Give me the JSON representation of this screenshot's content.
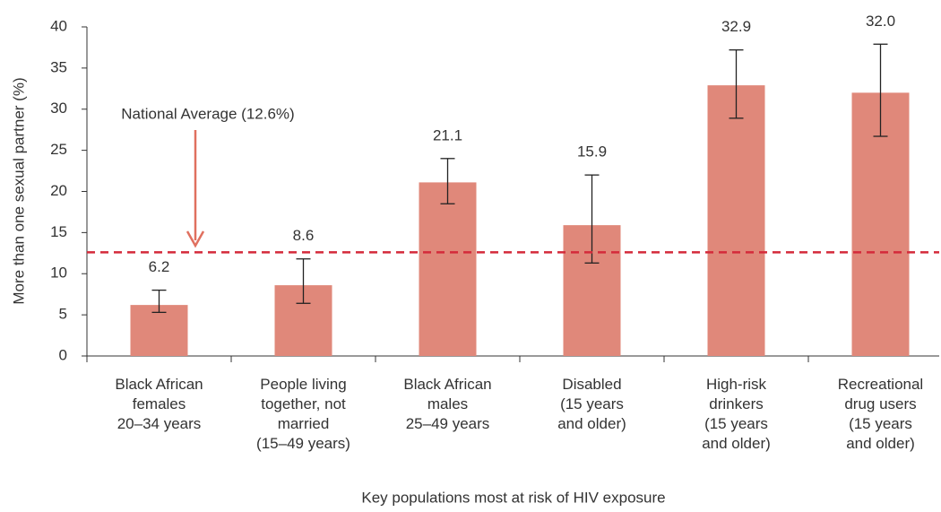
{
  "chart_data": {
    "type": "bar",
    "ylabel": "More than one sexual partner (%)",
    "xlabel": "Key populations most at risk of HIV exposure",
    "categories": [
      "Black African\nfemales\n20–34 years",
      "People living\ntogether, not\nmarried\n(15–49 years)",
      "Black African\nmales\n25–49 years",
      "Disabled\n(15 years\nand older)",
      "High-risk\ndrinkers\n(15 years\nand older)",
      "Recreational\ndrug users\n(15 years\nand older)"
    ],
    "values": [
      6.2,
      8.6,
      21.1,
      15.9,
      32.9,
      32.0
    ],
    "value_labels": [
      "6.2",
      "8.6",
      "21.1",
      "15.9",
      "32.9",
      "32.0"
    ],
    "error_low": [
      5.3,
      6.4,
      18.5,
      11.3,
      28.9,
      26.7
    ],
    "error_high": [
      8.0,
      11.8,
      24.0,
      22.0,
      37.2,
      37.9
    ],
    "color": "#e0887a",
    "ylim": [
      0,
      40
    ],
    "yticks": [
      0,
      5,
      10,
      15,
      20,
      25,
      30,
      35,
      40
    ],
    "reference_line": {
      "value": 12.6,
      "label": "National Average (12.6%)",
      "color": "#d42a3a"
    },
    "annotation_color": "#e0705f"
  }
}
